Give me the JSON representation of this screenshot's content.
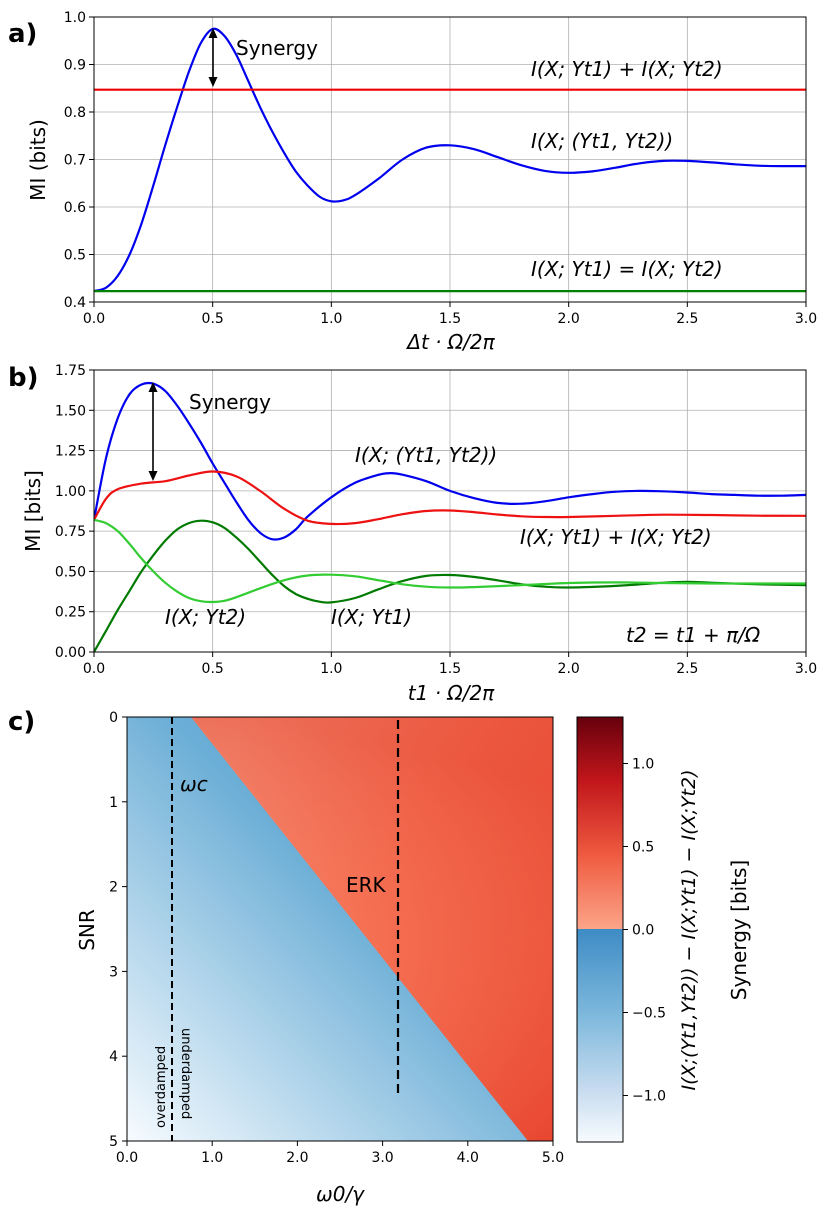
{
  "chart_data": [
    {
      "panel": "a)",
      "type": "line",
      "xlabel": "Δt · Ω/2π",
      "ylabel": "MI (bits)",
      "xlim": [
        0,
        3
      ],
      "ylim": [
        0.4,
        1.0
      ],
      "xticks": [
        "0.0",
        "0.5",
        "1.0",
        "1.5",
        "2.0",
        "2.5",
        "3.0"
      ],
      "yticks": [
        "0.4",
        "0.5",
        "0.6",
        "0.7",
        "0.8",
        "0.9",
        "1.0"
      ],
      "grid": true,
      "series": [
        {
          "name": "I(X;(Yt1,Yt2))",
          "color": "#0000ee",
          "x": [
            0,
            0.05,
            0.1,
            0.15,
            0.2,
            0.25,
            0.3,
            0.35,
            0.4,
            0.45,
            0.5,
            0.55,
            0.6,
            0.65,
            0.7,
            0.75,
            0.8,
            0.85,
            0.9,
            0.95,
            1.0,
            1.05,
            1.1,
            1.2,
            1.3,
            1.4,
            1.5,
            1.6,
            1.7,
            1.8,
            1.9,
            2.0,
            2.1,
            2.2,
            2.3,
            2.4,
            2.5,
            2.6,
            2.7,
            2.8,
            2.9,
            3.0
          ],
          "y": [
            0.423,
            0.43,
            0.455,
            0.5,
            0.565,
            0.645,
            0.73,
            0.81,
            0.885,
            0.945,
            0.975,
            0.96,
            0.92,
            0.865,
            0.81,
            0.76,
            0.715,
            0.675,
            0.645,
            0.622,
            0.612,
            0.614,
            0.625,
            0.66,
            0.7,
            0.725,
            0.73,
            0.722,
            0.705,
            0.688,
            0.676,
            0.672,
            0.675,
            0.683,
            0.692,
            0.697,
            0.697,
            0.694,
            0.69,
            0.687,
            0.686,
            0.686
          ]
        },
        {
          "name": "I(X;Yt1)+I(X;Yt2)",
          "color": "#ee0000",
          "x": [
            0,
            3
          ],
          "y": [
            0.847,
            0.847
          ]
        },
        {
          "name": "I(X;Yt1)=I(X;Yt2)",
          "color": "#008000",
          "x": [
            0,
            3
          ],
          "y": [
            0.423,
            0.423
          ]
        }
      ],
      "annotations": [
        {
          "text": "Synergy"
        },
        {
          "text": "I(X; Yt1) + I(X; Yt2)"
        },
        {
          "text": "I(X; (Yt1, Yt2))"
        },
        {
          "text": "I(X; Yt1) = I(X; Yt2)"
        }
      ]
    },
    {
      "panel": "b)",
      "type": "line",
      "xlabel": "t1 · Ω/2π",
      "ylabel": "MI [bits]",
      "xlim": [
        0,
        3
      ],
      "ylim": [
        0,
        1.75
      ],
      "xticks": [
        "0.0",
        "0.5",
        "1.0",
        "1.5",
        "2.0",
        "2.5",
        "3.0"
      ],
      "yticks": [
        "0.00",
        "0.25",
        "0.50",
        "0.75",
        "1.00",
        "1.25",
        "1.50",
        "1.75"
      ],
      "grid": true,
      "series": [
        {
          "name": "I(X;(Yt1,Yt2))",
          "color": "#0000ee",
          "x": [
            0,
            0.05,
            0.1,
            0.15,
            0.2,
            0.25,
            0.3,
            0.35,
            0.4,
            0.45,
            0.5,
            0.55,
            0.6,
            0.65,
            0.7,
            0.75,
            0.8,
            0.85,
            0.9,
            1.0,
            1.1,
            1.2,
            1.25,
            1.3,
            1.4,
            1.5,
            1.6,
            1.7,
            1.8,
            1.9,
            2.0,
            2.1,
            2.2,
            2.3,
            2.4,
            2.5,
            2.6,
            2.7,
            2.8,
            2.9,
            3.0
          ],
          "y": [
            0.82,
            1.2,
            1.45,
            1.6,
            1.66,
            1.665,
            1.62,
            1.53,
            1.42,
            1.3,
            1.17,
            1.05,
            0.93,
            0.82,
            0.74,
            0.7,
            0.71,
            0.76,
            0.84,
            0.96,
            1.05,
            1.1,
            1.11,
            1.1,
            1.06,
            1.0,
            0.955,
            0.925,
            0.92,
            0.935,
            0.96,
            0.98,
            0.995,
            1.0,
            0.997,
            0.99,
            0.98,
            0.975,
            0.97,
            0.97,
            0.975
          ]
        },
        {
          "name": "I(X;Yt1)+I(X;Yt2)",
          "color": "#ee1111",
          "x": [
            0,
            0.05,
            0.1,
            0.2,
            0.3,
            0.4,
            0.5,
            0.6,
            0.7,
            0.8,
            0.9,
            1.0,
            1.1,
            1.2,
            1.3,
            1.4,
            1.5,
            1.6,
            1.7,
            1.8,
            1.9,
            2.0,
            2.2,
            2.4,
            2.6,
            2.8,
            3.0
          ],
          "y": [
            0.82,
            0.95,
            1.01,
            1.045,
            1.06,
            1.095,
            1.12,
            1.09,
            1.0,
            0.89,
            0.815,
            0.795,
            0.8,
            0.825,
            0.855,
            0.875,
            0.878,
            0.868,
            0.853,
            0.842,
            0.838,
            0.838,
            0.845,
            0.852,
            0.85,
            0.846,
            0.845
          ]
        },
        {
          "name": "I(X;Yt1)",
          "color": "#007a00",
          "x": [
            0,
            0.05,
            0.1,
            0.15,
            0.2,
            0.25,
            0.3,
            0.35,
            0.4,
            0.45,
            0.5,
            0.55,
            0.6,
            0.65,
            0.7,
            0.75,
            0.8,
            0.85,
            0.9,
            0.95,
            1.0,
            1.1,
            1.2,
            1.3,
            1.4,
            1.5,
            1.6,
            1.7,
            1.8,
            1.9,
            2.0,
            2.2,
            2.4,
            2.5,
            2.6,
            2.8,
            3.0
          ],
          "y": [
            0,
            0.13,
            0.26,
            0.38,
            0.5,
            0.6,
            0.69,
            0.76,
            0.8,
            0.815,
            0.805,
            0.77,
            0.71,
            0.64,
            0.56,
            0.48,
            0.41,
            0.36,
            0.33,
            0.312,
            0.308,
            0.335,
            0.39,
            0.44,
            0.472,
            0.478,
            0.466,
            0.445,
            0.42,
            0.405,
            0.4,
            0.41,
            0.43,
            0.435,
            0.43,
            0.42,
            0.415
          ]
        },
        {
          "name": "I(X;Yt2)",
          "color": "#33cc33",
          "x": [
            0,
            0.05,
            0.1,
            0.15,
            0.2,
            0.25,
            0.3,
            0.35,
            0.4,
            0.45,
            0.5,
            0.55,
            0.6,
            0.7,
            0.8,
            0.9,
            1.0,
            1.1,
            1.2,
            1.3,
            1.4,
            1.5,
            1.6,
            1.8,
            2.0,
            2.2,
            2.4,
            2.6,
            2.8,
            3.0
          ],
          "y": [
            0.82,
            0.8,
            0.75,
            0.67,
            0.58,
            0.5,
            0.43,
            0.375,
            0.335,
            0.315,
            0.31,
            0.318,
            0.34,
            0.395,
            0.445,
            0.475,
            0.48,
            0.47,
            0.445,
            0.42,
            0.405,
            0.4,
            0.403,
            0.415,
            0.428,
            0.432,
            0.428,
            0.425,
            0.425,
            0.425
          ]
        }
      ],
      "annotations": [
        {
          "text": "Synergy"
        },
        {
          "text": "I(X; (Yt1, Yt2))"
        },
        {
          "text": "I(X; Yt1) + I(X; Yt2)"
        },
        {
          "text": "I(X; Yt2)"
        },
        {
          "text": "I(X; Yt1)"
        },
        {
          "text": "t2 = t1 + π/Ω"
        }
      ]
    },
    {
      "panel": "c)",
      "type": "heatmap",
      "xlabel": "ω0/γ",
      "ylabel": "SNR",
      "xlim": [
        0,
        5
      ],
      "ylim": [
        5,
        0
      ],
      "xticks": [
        "0.0",
        "1.0",
        "2.0",
        "3.0",
        "4.0",
        "5.0"
      ],
      "yticks": [
        "0",
        "1",
        "2",
        "3",
        "4",
        "5"
      ],
      "boundary": [
        [
          0.75,
          0
        ],
        [
          4.75,
          5
        ]
      ],
      "critical_line_x": 0.5,
      "erk_line_x": 3.2,
      "erk_line_ylim": [
        0,
        4.5
      ],
      "colorbar": {
        "label": "Synergy [bits]",
        "label2": "I(X;(Yt1,Yt2)) − I(X;Yt1) − I(X;Yt2)",
        "range": [
          -1.28,
          1.28
        ],
        "ticks": [
          "1.0",
          "0.5",
          "0.0",
          "−0.5",
          "−1.0"
        ],
        "colors": {
          "dark_red": "#67000d",
          "red": "#d73027",
          "salmon": "#fc9272",
          "blue": "#4292c6",
          "light": "#f7fbff"
        }
      },
      "annotations": [
        {
          "text": "ωc"
        },
        {
          "text": "ERK"
        },
        {
          "text": "overdamped"
        },
        {
          "text": "underdamped"
        }
      ]
    }
  ],
  "labels": {
    "panel_a": "a)",
    "panel_b": "b)",
    "panel_c": "c)"
  }
}
